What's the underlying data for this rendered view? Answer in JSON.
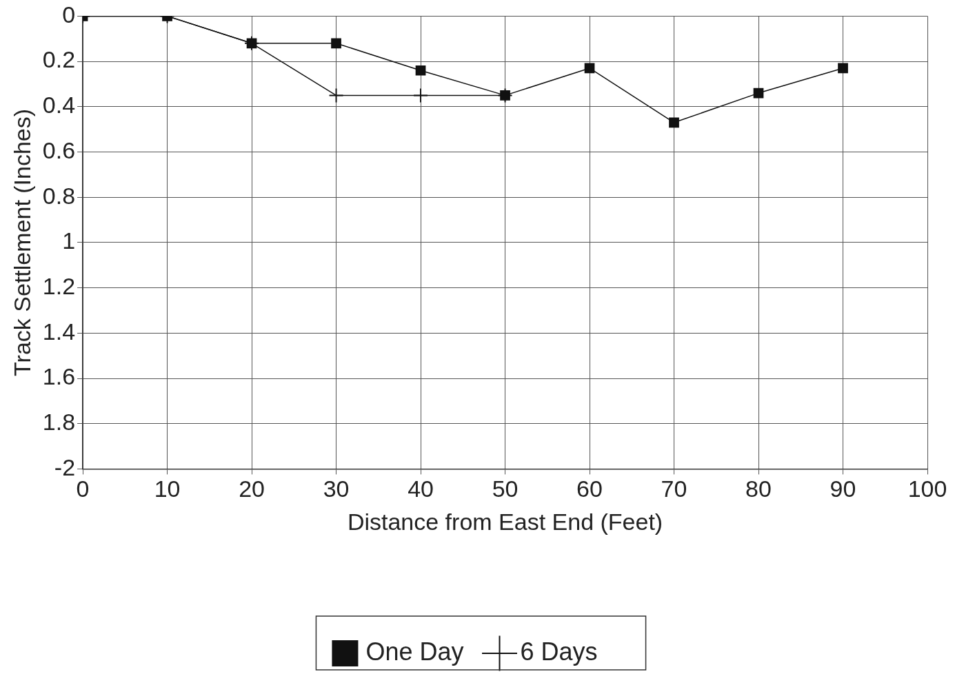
{
  "chart_data": {
    "type": "line",
    "xlabel": "Distance from East End (Feet)",
    "ylabel": "Track Settlement (Inches)",
    "xlim": [
      0,
      100
    ],
    "xticks": [
      0,
      10,
      20,
      30,
      40,
      50,
      60,
      70,
      80,
      90,
      100
    ],
    "ylim": [
      -2,
      0
    ],
    "yticks": [
      0,
      {
        "value": -0.2,
        "label": "0.2"
      },
      {
        "value": -0.4,
        "label": "0.4"
      },
      {
        "value": -0.6,
        "label": "0.6"
      },
      {
        "value": -0.8,
        "label": "0.8"
      },
      {
        "value": -1,
        "label": "1"
      },
      {
        "value": -1.2,
        "label": "1.2"
      },
      {
        "value": -1.4,
        "label": "1.4"
      },
      {
        "value": -1.6,
        "label": "1.6"
      },
      {
        "value": -1.8,
        "label": "1.8"
      },
      -2
    ],
    "grid": true,
    "legend": "bottom",
    "line_style": "solid",
    "series": [
      {
        "name": "One Day",
        "color": "#111111",
        "marker": "square",
        "x": [
          0,
          10,
          20,
          30,
          40,
          50,
          60,
          70,
          80,
          90
        ],
        "values": [
          0,
          0,
          -0.12,
          -0.12,
          -0.24,
          -0.35,
          -0.23,
          -0.47,
          -0.34,
          -0.23
        ]
      },
      {
        "name": "6 Days",
        "color": "#111111",
        "marker": "cross",
        "x": [
          0,
          10,
          20,
          30,
          40,
          50
        ],
        "values": [
          0,
          0,
          -0.12,
          -0.35,
          -0.35,
          -0.35
        ]
      }
    ]
  }
}
